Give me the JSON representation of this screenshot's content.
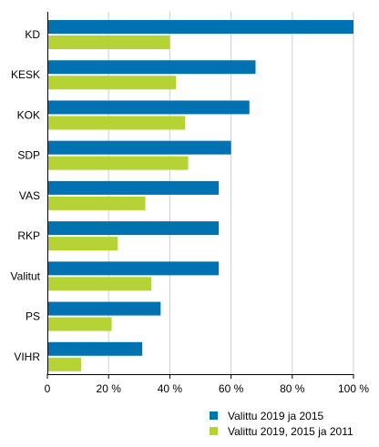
{
  "chart_data": {
    "type": "bar",
    "orientation": "horizontal",
    "categories": [
      "KD",
      "KESK",
      "KOK",
      "SDP",
      "VAS",
      "RKP",
      "Valitut",
      "PS",
      "VIHR"
    ],
    "series": [
      {
        "name": "Valittu 2019 ja 2015",
        "color": "#0072b2",
        "values": [
          100,
          68,
          66,
          60,
          56,
          56,
          56,
          37,
          31
        ]
      },
      {
        "name": "Valittu 2019, 2015 ja 2011",
        "color": "#b5d334",
        "values": [
          40,
          42,
          45,
          46,
          32,
          23,
          34,
          21,
          11
        ]
      }
    ],
    "xlim": [
      0,
      100
    ],
    "xticks": [
      0,
      20,
      40,
      60,
      80,
      100
    ],
    "xtick_labels": [
      "0",
      "20 %",
      "40 %",
      "60 %",
      "80 %",
      "100 %"
    ],
    "grid": true,
    "legend_position": "bottom-right"
  }
}
